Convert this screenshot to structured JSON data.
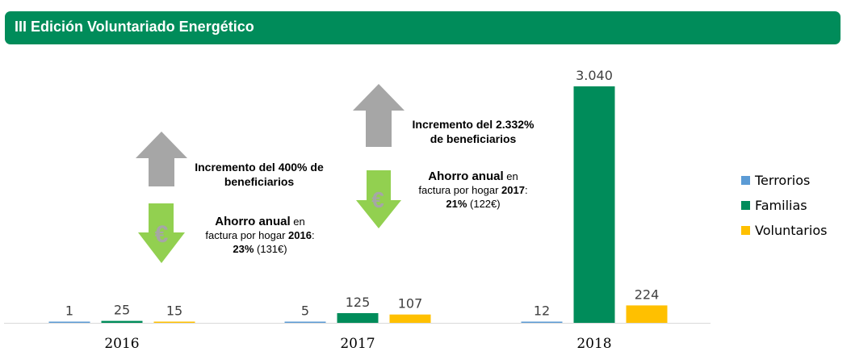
{
  "header": {
    "title": "III Edición Voluntariado Energético"
  },
  "chart_data": {
    "type": "bar",
    "categories": [
      "2016",
      "2017",
      "2018"
    ],
    "series": [
      {
        "name": "Terrorios",
        "values": [
          1,
          5,
          12
        ],
        "labels": [
          "1",
          "5",
          "12"
        ],
        "color": "#5b9bd5"
      },
      {
        "name": "Familias",
        "values": [
          25,
          125,
          3040
        ],
        "labels": [
          "25",
          "125",
          "3.040"
        ],
        "color": "#008c5a"
      },
      {
        "name": "Voluntarios",
        "values": [
          15,
          107,
          224
        ],
        "labels": [
          "15",
          "107",
          "224"
        ],
        "color": "#ffc000"
      }
    ],
    "ylim": [
      0,
      3040
    ],
    "legend": "right",
    "grid": false
  },
  "annotations": [
    {
      "increase_prefix": "Incremento del 400% de",
      "increase_suffix": "beneficiarios",
      "savings_bold": "Ahorro anual",
      "savings_rest": " en",
      "line2_text": "factura por hogar ",
      "year": "2016",
      "colon": ":",
      "pct": "23%",
      "amount": " (131€)"
    },
    {
      "increase_prefix": "Incremento del 2.332%",
      "increase_suffix": "de beneficiarios",
      "savings_bold": "Ahorro anual",
      "savings_rest": " en",
      "line2_text": "factura por hogar ",
      "year": "2017",
      "colon": ":",
      "pct": "21%",
      "amount": " (122€)"
    }
  ],
  "icons": {
    "up": "gray-up-arrow-icon",
    "down": "green-down-arrow-euro-icon",
    "euro": "€"
  }
}
